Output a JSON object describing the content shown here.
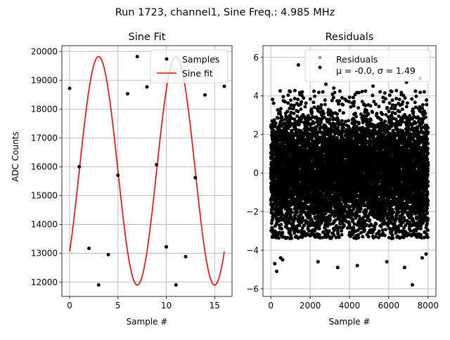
{
  "suptitle": "Run 1723, channel1, Sine Freq.: 4.985 MHz",
  "chart_data": [
    {
      "type": "line",
      "title": "Sine Fit",
      "xlabel": "Sample #",
      "ylabel": "ADC Counts",
      "xlim": [
        -0.8,
        16.8
      ],
      "ylim": [
        11500,
        20200
      ],
      "xticks": [
        0,
        5,
        10,
        15
      ],
      "xtick_labels": [
        "0",
        "5",
        "10",
        "15"
      ],
      "yticks": [
        12000,
        13000,
        14000,
        15000,
        16000,
        17000,
        18000,
        19000,
        20000
      ],
      "ytick_labels": [
        "12000",
        "13000",
        "14000",
        "15000",
        "16000",
        "17000",
        "18000",
        "19000",
        "20000"
      ],
      "grid": true,
      "legend_position": "upper right",
      "legend": [
        "Samples",
        "Sine fit"
      ],
      "series": [
        {
          "name": "Samples",
          "style": "points",
          "color": "#000000",
          "x": [
            0,
            1,
            2,
            3,
            4,
            5,
            6,
            7,
            8,
            9,
            10,
            11,
            12,
            13,
            14,
            15,
            16
          ],
          "y": [
            18720,
            16000,
            13170,
            11900,
            12950,
            15700,
            18530,
            19820,
            18770,
            16070,
            13220,
            11900,
            12880,
            15620,
            18490,
            19780,
            18790
          ]
        },
        {
          "name": "Sine fit",
          "style": "line",
          "color": "#ff0000",
          "amplitude": 3965,
          "offset": 15860,
          "period": 8.0,
          "phase_sample": 5.0
        }
      ]
    },
    {
      "type": "scatter",
      "title": "Residuals",
      "xlabel": "Sample #",
      "xlim": [
        -400,
        8400
      ],
      "ylim": [
        -6.4,
        6.6
      ],
      "xticks": [
        0,
        2000,
        4000,
        6000,
        8000
      ],
      "xtick_labels": [
        "0",
        "2000",
        "4000",
        "6000",
        "8000"
      ],
      "yticks": [
        -6,
        -4,
        -2,
        0,
        2,
        4,
        6
      ],
      "ytick_labels": [
        "−6",
        "−4",
        "−2",
        "0",
        "2",
        "4",
        "6"
      ],
      "grid": true,
      "legend_position": "upper right",
      "legend": [
        "Residuals",
        "μ = -0.0, σ = 1.49"
      ],
      "series": [
        {
          "name": "Residuals",
          "color": "#000000",
          "n_points": 8000,
          "mean": 0.0,
          "std": 1.49,
          "clip": [
            -3.0,
            4.0
          ],
          "outliers": [
            [
              300,
              -5.1
            ],
            [
              200,
              -4.7
            ],
            [
              7200,
              -5.8
            ],
            [
              6800,
              -4.9
            ],
            [
              5900,
              -4.6
            ],
            [
              1400,
              5.6
            ],
            [
              1600,
              4.2
            ],
            [
              2800,
              4.6
            ],
            [
              3200,
              4.4
            ],
            [
              4400,
              -4.8
            ],
            [
              3400,
              -4.9
            ],
            [
              6900,
              4.7
            ],
            [
              7600,
              4.9
            ],
            [
              7700,
              -4.4
            ],
            [
              600,
              -4.5
            ],
            [
              2400,
              -4.6
            ],
            [
              5200,
              4.5
            ],
            [
              500,
              -4.4
            ],
            [
              7900,
              -4.2
            ]
          ]
        }
      ]
    }
  ]
}
